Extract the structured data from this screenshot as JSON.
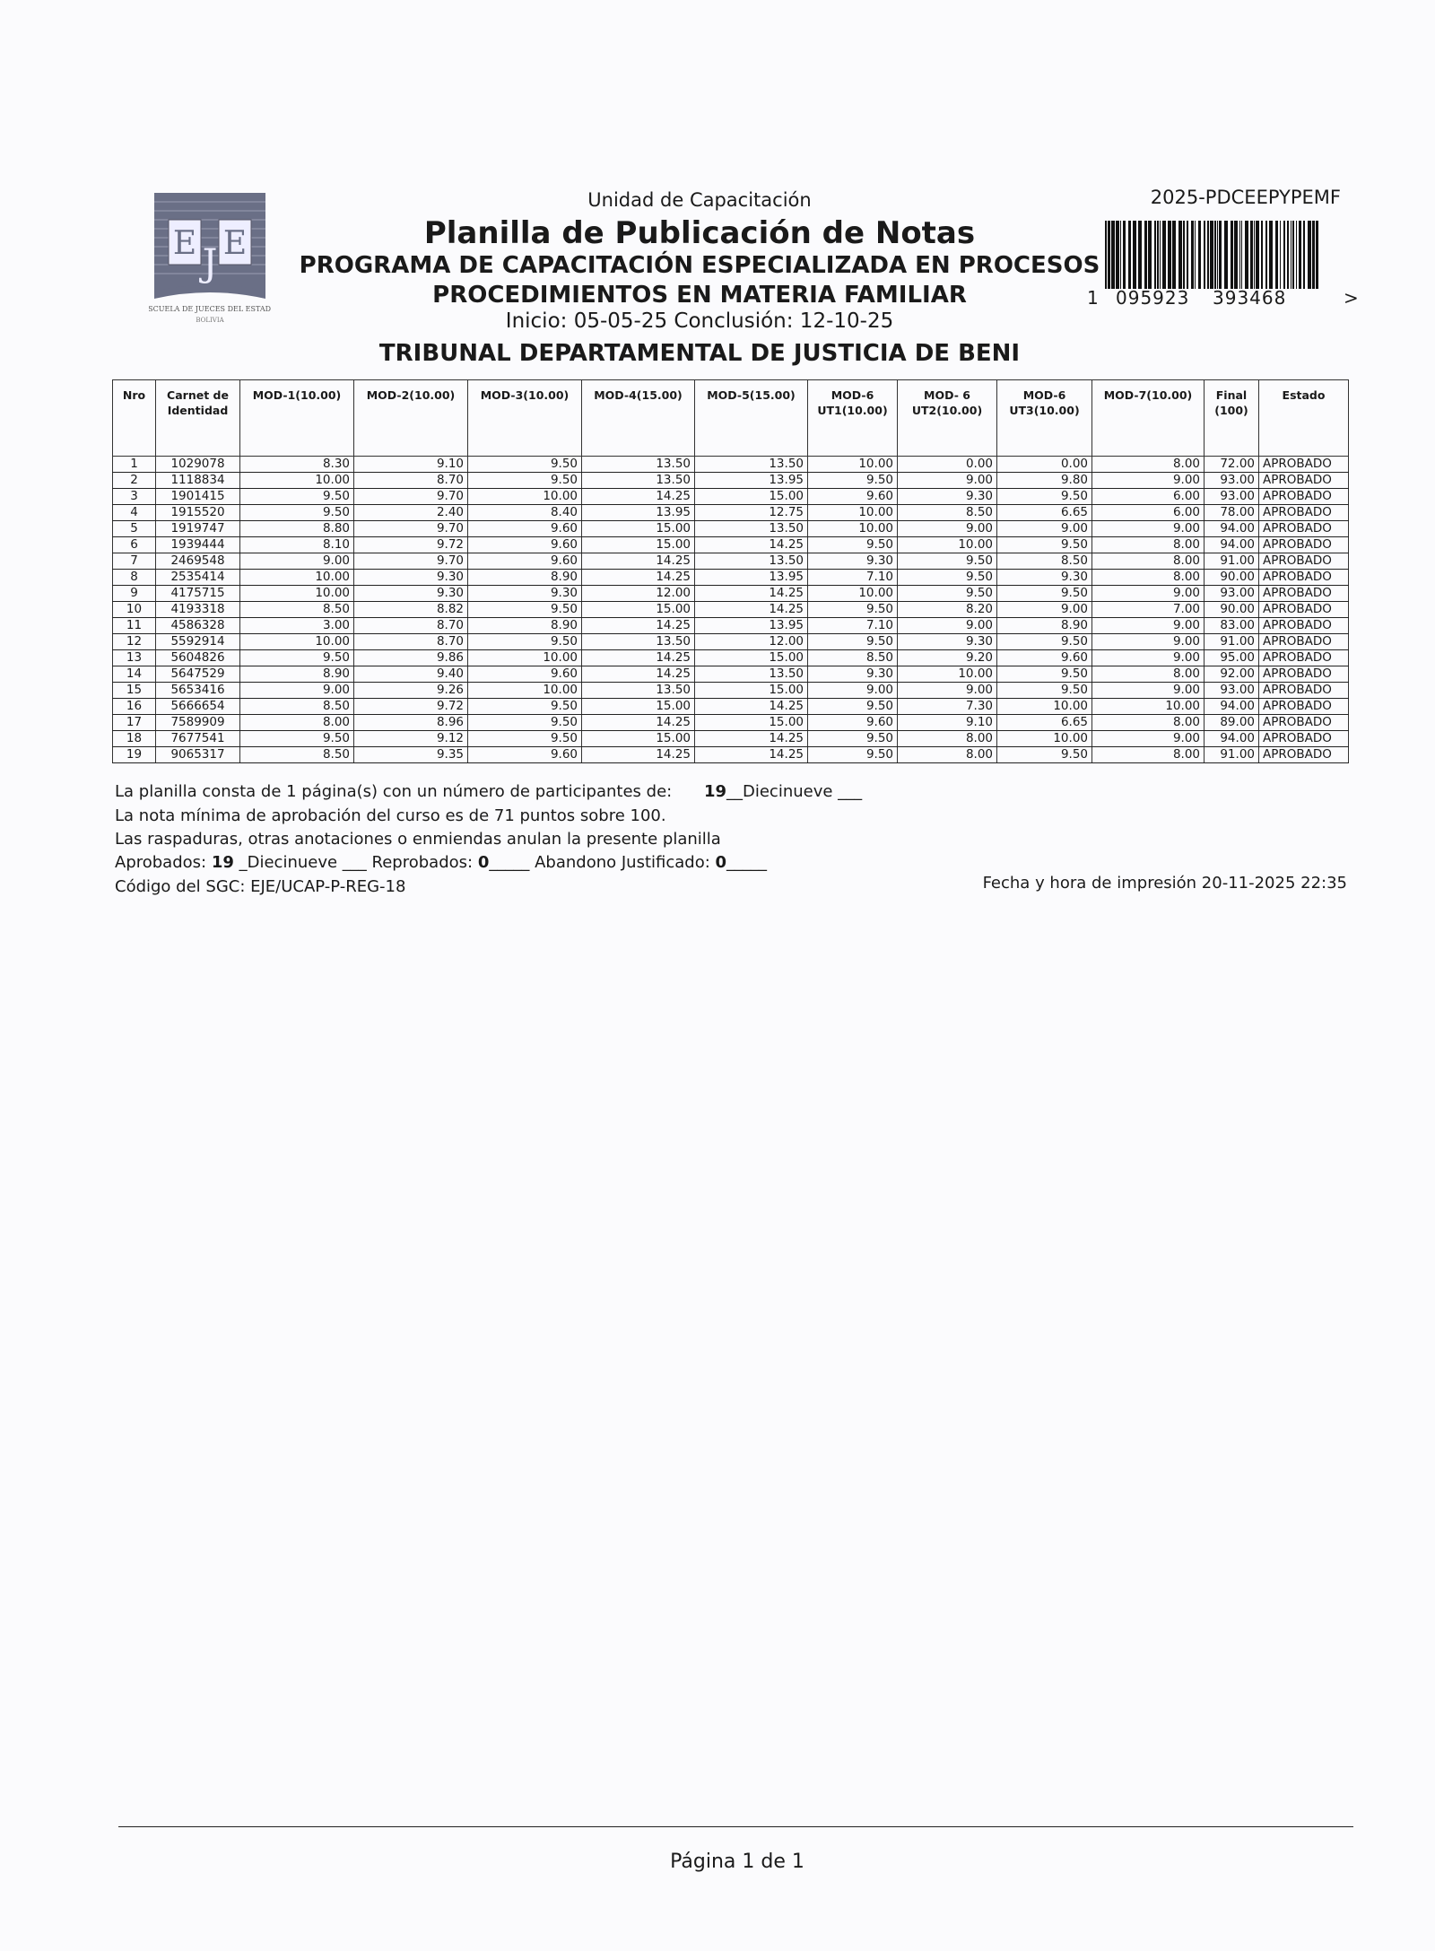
{
  "header": {
    "unit": "Unidad de Capacitación",
    "title": "Planilla de Publicación de Notas",
    "program_line1": "PROGRAMA DE CAPACITACIÓN ESPECIALIZADA EN PROCESOS",
    "program_line2": "PROCEDIMIENTOS EN MATERIA FAMILIAR",
    "dates": "Inicio: 05-05-25 Conclusión: 12-10-25",
    "tribunal": "TRIBUNAL DEPARTAMENTAL DE JUSTICIA DE BENI",
    "code": "2025-PDCEEPYPEMF",
    "barcode": {
      "lead": "1",
      "group1": "095923",
      "group2": "393468",
      "trail": ">"
    },
    "logo": {
      "letters": "EJE",
      "caption": "ESCUELA DE JUECES DEL ESTADO",
      "country": "BOLIVIA"
    }
  },
  "table": {
    "columns": [
      "Nro",
      "Carnet de Identidad",
      "MOD-1(10.00)",
      "MOD-2(10.00)",
      "MOD-3(10.00)",
      "MOD-4(15.00)",
      "MOD-5(15.00)",
      "MOD-6 UT1(10.00)",
      "MOD- 6 UT2(10.00)",
      "MOD-6 UT3(10.00)",
      "MOD-7(10.00)",
      "Final (100)",
      "Estado"
    ],
    "rows": [
      [
        "1",
        "1029078",
        "8.30",
        "9.10",
        "9.50",
        "13.50",
        "13.50",
        "10.00",
        "0.00",
        "0.00",
        "8.00",
        "72.00",
        "APROBADO"
      ],
      [
        "2",
        "1118834",
        "10.00",
        "8.70",
        "9.50",
        "13.50",
        "13.95",
        "9.50",
        "9.00",
        "9.80",
        "9.00",
        "93.00",
        "APROBADO"
      ],
      [
        "3",
        "1901415",
        "9.50",
        "9.70",
        "10.00",
        "14.25",
        "15.00",
        "9.60",
        "9.30",
        "9.50",
        "6.00",
        "93.00",
        "APROBADO"
      ],
      [
        "4",
        "1915520",
        "9.50",
        "2.40",
        "8.40",
        "13.95",
        "12.75",
        "10.00",
        "8.50",
        "6.65",
        "6.00",
        "78.00",
        "APROBADO"
      ],
      [
        "5",
        "1919747",
        "8.80",
        "9.70",
        "9.60",
        "15.00",
        "13.50",
        "10.00",
        "9.00",
        "9.00",
        "9.00",
        "94.00",
        "APROBADO"
      ],
      [
        "6",
        "1939444",
        "8.10",
        "9.72",
        "9.60",
        "15.00",
        "14.25",
        "9.50",
        "10.00",
        "9.50",
        "8.00",
        "94.00",
        "APROBADO"
      ],
      [
        "7",
        "2469548",
        "9.00",
        "9.70",
        "9.60",
        "14.25",
        "13.50",
        "9.30",
        "9.50",
        "8.50",
        "8.00",
        "91.00",
        "APROBADO"
      ],
      [
        "8",
        "2535414",
        "10.00",
        "9.30",
        "8.90",
        "14.25",
        "13.95",
        "7.10",
        "9.50",
        "9.30",
        "8.00",
        "90.00",
        "APROBADO"
      ],
      [
        "9",
        "4175715",
        "10.00",
        "9.30",
        "9.30",
        "12.00",
        "14.25",
        "10.00",
        "9.50",
        "9.50",
        "9.00",
        "93.00",
        "APROBADO"
      ],
      [
        "10",
        "4193318",
        "8.50",
        "8.82",
        "9.50",
        "15.00",
        "14.25",
        "9.50",
        "8.20",
        "9.00",
        "7.00",
        "90.00",
        "APROBADO"
      ],
      [
        "11",
        "4586328",
        "3.00",
        "8.70",
        "8.90",
        "14.25",
        "13.95",
        "7.10",
        "9.00",
        "8.90",
        "9.00",
        "83.00",
        "APROBADO"
      ],
      [
        "12",
        "5592914",
        "10.00",
        "8.70",
        "9.50",
        "13.50",
        "12.00",
        "9.50",
        "9.30",
        "9.50",
        "9.00",
        "91.00",
        "APROBADO"
      ],
      [
        "13",
        "5604826",
        "9.50",
        "9.86",
        "10.00",
        "14.25",
        "15.00",
        "8.50",
        "9.20",
        "9.60",
        "9.00",
        "95.00",
        "APROBADO"
      ],
      [
        "14",
        "5647529",
        "8.90",
        "9.40",
        "9.60",
        "14.25",
        "13.50",
        "9.30",
        "10.00",
        "9.50",
        "8.00",
        "92.00",
        "APROBADO"
      ],
      [
        "15",
        "5653416",
        "9.00",
        "9.26",
        "10.00",
        "13.50",
        "15.00",
        "9.00",
        "9.00",
        "9.50",
        "9.00",
        "93.00",
        "APROBADO"
      ],
      [
        "16",
        "5666654",
        "8.50",
        "9.72",
        "9.50",
        "15.00",
        "14.25",
        "9.50",
        "7.30",
        "10.00",
        "10.00",
        "94.00",
        "APROBADO"
      ],
      [
        "17",
        "7589909",
        "8.00",
        "8.96",
        "9.50",
        "14.25",
        "15.00",
        "9.60",
        "9.10",
        "6.65",
        "8.00",
        "89.00",
        "APROBADO"
      ],
      [
        "18",
        "7677541",
        "9.50",
        "9.12",
        "9.50",
        "15.00",
        "14.25",
        "9.50",
        "8.00",
        "10.00",
        "9.00",
        "94.00",
        "APROBADO"
      ],
      [
        "19",
        "9065317",
        "8.50",
        "9.35",
        "9.60",
        "14.25",
        "14.25",
        "9.50",
        "8.00",
        "9.50",
        "8.00",
        "91.00",
        "APROBADO"
      ]
    ]
  },
  "footer": {
    "participants_text": "La planilla consta de 1 página(s) con un número de participantes de:",
    "participants_count": "19",
    "participants_words": "__Diecinueve ___",
    "min_grade": "La nota mínima de aprobación del curso es de 71 puntos sobre 100.",
    "warning": "Las raspaduras, otras anotaciones o enmiendas anulan la presente planilla",
    "approved_label": "Aprobados:",
    "approved_count": "19",
    "approved_words": "_Diecinueve ___",
    "failed_label": "Reprobados:",
    "failed_count": "0",
    "abandon_label": "Abandono Justificado:",
    "abandon_count": "0",
    "blank": "_____",
    "sgc_code": "Código del SGC: EJE/UCAP-P-REG-18",
    "print_date": "Fecha y hora de impresión 20-11-2025 22:35",
    "page": "Página 1 de 1"
  }
}
